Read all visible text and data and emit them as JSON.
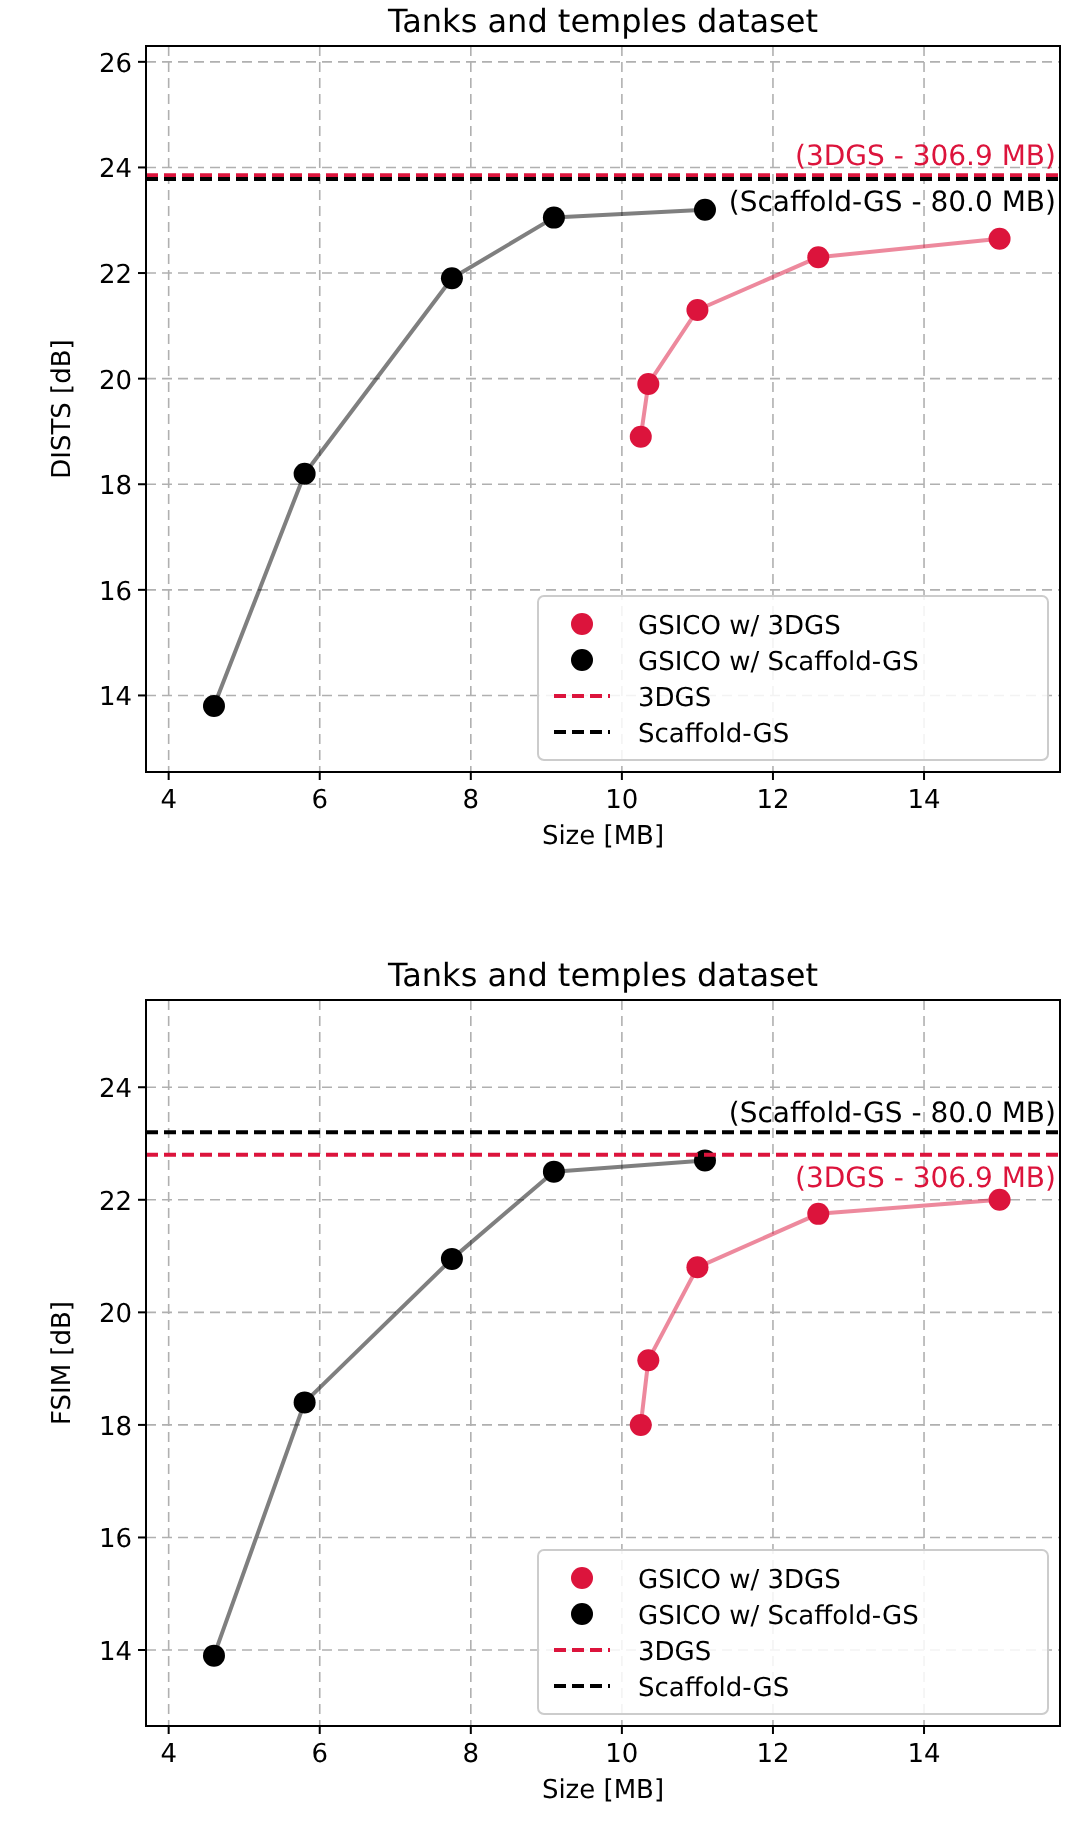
{
  "chart_data": [
    {
      "type": "line",
      "title": "Tanks and temples dataset",
      "xlabel": "Size [MB]",
      "ylabel": "DISTS [dB]",
      "xlim": [
        3.7,
        15.8
      ],
      "ylim": [
        12.55,
        26.3
      ],
      "xticks": [
        4,
        6,
        8,
        10,
        12,
        14
      ],
      "yticks": [
        14,
        16,
        18,
        20,
        22,
        24,
        26
      ],
      "grid": true,
      "legend": "bottom right",
      "marker": "circle",
      "line_style": "solid",
      "series": [
        {
          "name": "GSICO w/ 3DGS",
          "color": "#dc143c",
          "x": [
            10.25,
            10.35,
            11.0,
            12.6,
            15.0
          ],
          "values": [
            18.9,
            19.9,
            21.3,
            22.3,
            22.65
          ]
        },
        {
          "name": "GSICO w/ Scaffold-GS",
          "color": "#000000",
          "x": [
            4.6,
            5.8,
            7.75,
            9.1,
            11.1
          ],
          "values": [
            13.8,
            18.2,
            21.9,
            23.05,
            23.2
          ]
        }
      ],
      "ref_lines": [
        {
          "axis": "y",
          "value": 23.85,
          "label": "3DGS",
          "color": "#dc143c",
          "line_style": "dashed"
        },
        {
          "axis": "y",
          "value": 23.78,
          "label": "Scaffold-GS",
          "color": "#000000",
          "line_style": "dashed"
        }
      ],
      "annotations": [
        {
          "text": "(3DGS - 306.9 MB)",
          "y": 23.85
        },
        {
          "text": "(Scaffold-GS - 80.0 MB)",
          "y": 23.78
        }
      ]
    },
    {
      "type": "line",
      "title": "Tanks and temples dataset",
      "xlabel": "Size [MB]",
      "ylabel": "FSIM [dB]",
      "xlim": [
        3.7,
        15.8
      ],
      "ylim": [
        12.65,
        25.55
      ],
      "xticks": [
        4,
        6,
        8,
        10,
        12,
        14
      ],
      "yticks": [
        14,
        16,
        18,
        20,
        22,
        24
      ],
      "grid": true,
      "legend": "bottom right",
      "marker": "circle",
      "line_style": "solid",
      "series": [
        {
          "name": "GSICO w/ 3DGS",
          "color": "#dc143c",
          "x": [
            10.25,
            10.35,
            11.0,
            12.6,
            15.0
          ],
          "values": [
            18.0,
            19.15,
            20.8,
            21.75,
            22.0
          ]
        },
        {
          "name": "GSICO w/ Scaffold-GS",
          "color": "#000000",
          "x": [
            4.6,
            5.8,
            7.75,
            9.1,
            11.1
          ],
          "values": [
            13.9,
            18.4,
            20.95,
            22.5,
            22.7
          ]
        }
      ],
      "ref_lines": [
        {
          "axis": "y",
          "value": 22.8,
          "label": "3DGS",
          "color": "#dc143c",
          "line_style": "dashed"
        },
        {
          "axis": "y",
          "value": 23.2,
          "label": "Scaffold-GS",
          "color": "#000000",
          "line_style": "dashed"
        }
      ],
      "annotations": [
        {
          "text": "(3DGS - 306.9 MB)",
          "y": 22.8
        },
        {
          "text": "(Scaffold-GS - 80.0 MB)",
          "y": 23.2
        }
      ]
    }
  ]
}
